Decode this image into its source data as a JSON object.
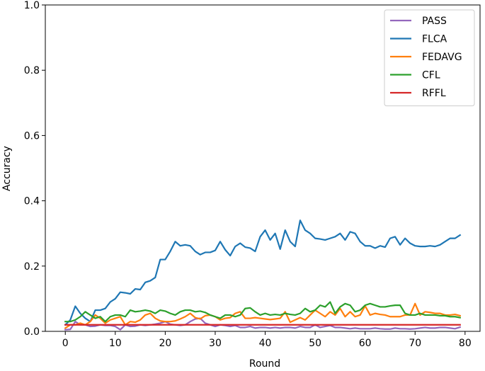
{
  "chart_data": {
    "type": "line",
    "title": "",
    "xlabel": "Round",
    "ylabel": "Accuracy",
    "xlim": [
      -4,
      83
    ],
    "ylim": [
      0,
      1.0
    ],
    "xticks": [
      0,
      10,
      20,
      30,
      40,
      50,
      60,
      70,
      80
    ],
    "yticks": [
      0.0,
      0.2,
      0.4,
      0.6,
      0.8,
      1.0
    ],
    "ytick_labels": [
      "0.0",
      "0.2",
      "0.4",
      "0.6",
      "0.8",
      "1.0"
    ],
    "legend_position": "top-right",
    "grid": false,
    "x": [
      0,
      1,
      2,
      3,
      4,
      5,
      6,
      7,
      8,
      9,
      10,
      11,
      12,
      13,
      14,
      15,
      16,
      17,
      18,
      19,
      20,
      21,
      22,
      23,
      24,
      25,
      26,
      27,
      28,
      29,
      30,
      31,
      32,
      33,
      34,
      35,
      36,
      37,
      38,
      39,
      40,
      41,
      42,
      43,
      44,
      45,
      46,
      47,
      48,
      49,
      50,
      51,
      52,
      53,
      54,
      55,
      56,
      57,
      58,
      59,
      60,
      61,
      62,
      63,
      64,
      65,
      66,
      67,
      68,
      69,
      70,
      71,
      72,
      73,
      74,
      75,
      76,
      77,
      78,
      79
    ],
    "series": [
      {
        "name": "PASS",
        "color": "#9467bd",
        "values": [
          0.005,
          0.006,
          0.03,
          0.02,
          0.02,
          0.015,
          0.016,
          0.02,
          0.018,
          0.018,
          0.015,
          0.005,
          0.02,
          0.015,
          0.016,
          0.02,
          0.018,
          0.02,
          0.022,
          0.025,
          0.03,
          0.022,
          0.02,
          0.018,
          0.02,
          0.03,
          0.038,
          0.04,
          0.025,
          0.02,
          0.015,
          0.02,
          0.018,
          0.015,
          0.018,
          0.012,
          0.012,
          0.015,
          0.01,
          0.012,
          0.012,
          0.01,
          0.012,
          0.01,
          0.012,
          0.012,
          0.01,
          0.015,
          0.012,
          0.012,
          0.02,
          0.012,
          0.015,
          0.018,
          0.012,
          0.012,
          0.01,
          0.008,
          0.01,
          0.008,
          0.008,
          0.008,
          0.01,
          0.008,
          0.007,
          0.007,
          0.01,
          0.008,
          0.008,
          0.007,
          0.008,
          0.01,
          0.012,
          0.01,
          0.01,
          0.012,
          0.012,
          0.01,
          0.008,
          0.013
        ]
      },
      {
        "name": "FLCA",
        "color": "#1f77b4",
        "values": [
          0.02,
          0.035,
          0.077,
          0.055,
          0.04,
          0.03,
          0.065,
          0.065,
          0.07,
          0.09,
          0.1,
          0.12,
          0.118,
          0.115,
          0.13,
          0.128,
          0.15,
          0.155,
          0.165,
          0.22,
          0.22,
          0.245,
          0.275,
          0.262,
          0.265,
          0.262,
          0.245,
          0.235,
          0.242,
          0.242,
          0.248,
          0.275,
          0.25,
          0.232,
          0.26,
          0.27,
          0.258,
          0.255,
          0.245,
          0.29,
          0.31,
          0.28,
          0.3,
          0.252,
          0.31,
          0.275,
          0.26,
          0.34,
          0.31,
          0.3,
          0.285,
          0.283,
          0.28,
          0.285,
          0.29,
          0.3,
          0.28,
          0.305,
          0.3,
          0.275,
          0.262,
          0.262,
          0.255,
          0.262,
          0.258,
          0.285,
          0.29,
          0.265,
          0.285,
          0.27,
          0.262,
          0.26,
          0.26,
          0.262,
          0.26,
          0.265,
          0.275,
          0.285,
          0.285,
          0.295
        ]
      },
      {
        "name": "FEDAVG",
        "color": "#ff7f0e",
        "values": [
          0.01,
          0.02,
          0.02,
          0.025,
          0.02,
          0.03,
          0.05,
          0.04,
          0.025,
          0.035,
          0.04,
          0.045,
          0.02,
          0.03,
          0.028,
          0.035,
          0.05,
          0.055,
          0.04,
          0.032,
          0.03,
          0.03,
          0.032,
          0.038,
          0.045,
          0.055,
          0.042,
          0.038,
          0.048,
          0.05,
          0.045,
          0.035,
          0.04,
          0.042,
          0.055,
          0.06,
          0.04,
          0.04,
          0.042,
          0.04,
          0.038,
          0.036,
          0.038,
          0.04,
          0.06,
          0.028,
          0.035,
          0.042,
          0.035,
          0.05,
          0.065,
          0.055,
          0.045,
          0.06,
          0.05,
          0.07,
          0.045,
          0.06,
          0.045,
          0.05,
          0.078,
          0.05,
          0.055,
          0.052,
          0.05,
          0.045,
          0.045,
          0.045,
          0.05,
          0.05,
          0.085,
          0.05,
          0.06,
          0.058,
          0.055,
          0.055,
          0.05,
          0.05,
          0.052,
          0.048
        ]
      },
      {
        "name": "CFL",
        "color": "#2ca02c",
        "values": [
          0.03,
          0.03,
          0.035,
          0.045,
          0.06,
          0.05,
          0.04,
          0.045,
          0.03,
          0.045,
          0.05,
          0.05,
          0.045,
          0.065,
          0.06,
          0.062,
          0.065,
          0.062,
          0.055,
          0.065,
          0.062,
          0.055,
          0.05,
          0.06,
          0.065,
          0.065,
          0.06,
          0.062,
          0.058,
          0.05,
          0.045,
          0.04,
          0.05,
          0.05,
          0.045,
          0.05,
          0.07,
          0.072,
          0.06,
          0.05,
          0.055,
          0.05,
          0.052,
          0.05,
          0.055,
          0.052,
          0.05,
          0.055,
          0.07,
          0.06,
          0.065,
          0.08,
          0.075,
          0.09,
          0.055,
          0.075,
          0.085,
          0.08,
          0.06,
          0.065,
          0.08,
          0.085,
          0.08,
          0.075,
          0.075,
          0.078,
          0.08,
          0.08,
          0.055,
          0.05,
          0.05,
          0.055,
          0.05,
          0.05,
          0.05,
          0.048,
          0.048,
          0.045,
          0.045,
          0.042
        ]
      },
      {
        "name": "RFFL",
        "color": "#d62728",
        "values": [
          0.02,
          0.02,
          0.02,
          0.02,
          0.02,
          0.02,
          0.02,
          0.02,
          0.02,
          0.02,
          0.02,
          0.02,
          0.02,
          0.02,
          0.02,
          0.02,
          0.02,
          0.02,
          0.02,
          0.02,
          0.02,
          0.02,
          0.02,
          0.02,
          0.02,
          0.02,
          0.02,
          0.02,
          0.02,
          0.02,
          0.02,
          0.02,
          0.02,
          0.02,
          0.02,
          0.02,
          0.02,
          0.02,
          0.02,
          0.02,
          0.02,
          0.02,
          0.02,
          0.02,
          0.02,
          0.02,
          0.02,
          0.02,
          0.02,
          0.02,
          0.02,
          0.02,
          0.02,
          0.02,
          0.02,
          0.02,
          0.02,
          0.02,
          0.02,
          0.02,
          0.02,
          0.02,
          0.02,
          0.02,
          0.02,
          0.02,
          0.02,
          0.02,
          0.02,
          0.02,
          0.02,
          0.02,
          0.02,
          0.02,
          0.02,
          0.02,
          0.02,
          0.02,
          0.02,
          0.02
        ]
      }
    ]
  }
}
